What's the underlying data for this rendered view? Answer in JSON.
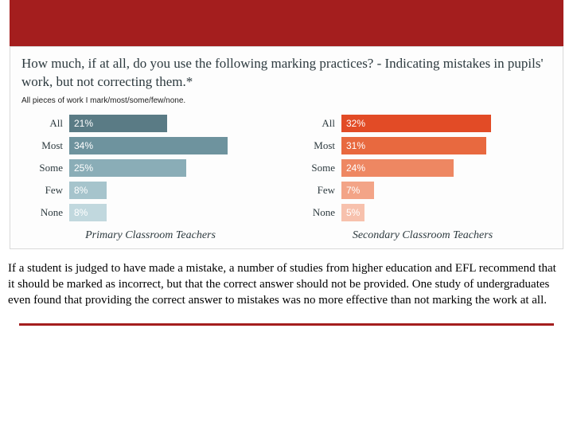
{
  "banner_color": "#a41e1e",
  "card": {
    "question": "How much, if at all, do you use the following marking practices? - Indicating mistakes in pupils' work, but not correcting them.*",
    "sub": "All pieces of work I mark/most/some/few/none."
  },
  "categories": [
    "All",
    "Most",
    "Some",
    "Few",
    "None"
  ],
  "left": {
    "title": "Primary Classroom Teachers",
    "values": [
      21,
      34,
      25,
      8,
      8
    ],
    "colors": [
      "#5a7b85",
      "#6e939e",
      "#8aadb7",
      "#a6c4cc",
      "#c1d8de"
    ],
    "max": 45
  },
  "right": {
    "title": "Secondary Classroom Teachers",
    "values": [
      32,
      31,
      24,
      7,
      5
    ],
    "colors": [
      "#e24b26",
      "#e8693f",
      "#ee8762",
      "#f3a487",
      "#f7c1ad"
    ],
    "max": 45
  },
  "paragraph": "If a student is judged to have made a mistake, a number of studies from higher education and EFL recommend that it should be marked as incorrect, but that the correct answer should not be provided. One study of undergraduates even found that providing the correct answer to mistakes was no more effective than not marking the work at all."
}
